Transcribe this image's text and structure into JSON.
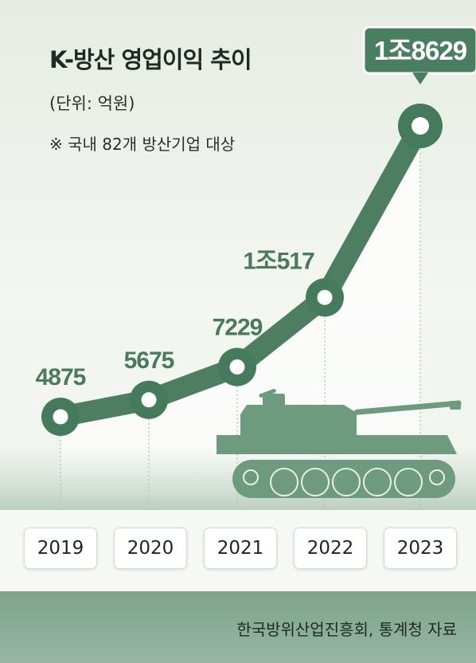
{
  "title": "K-방산 영업이익 추이",
  "unit_note": "(단위: 억원)",
  "scope_note": "※ 국내 82개 방산기업 대상",
  "source": "한국방위산업진흥회, 통계청 자료",
  "colors": {
    "line": "#4d7e62",
    "marker": "#457a5c",
    "callout": "#4a7e60",
    "label": "#4a7a5e",
    "tank": "#6e9a7e"
  },
  "chart_data": {
    "type": "line",
    "title": "K-방산 영업이익 추이",
    "ylabel": "(단위: 억원)",
    "categories": [
      "2019",
      "2020",
      "2021",
      "2022",
      "2023"
    ],
    "values": [
      4875,
      5675,
      7229,
      10517,
      18629
    ],
    "data_labels": [
      "4875",
      "5675",
      "7229",
      "1조517",
      "1조8629"
    ],
    "highlight_index": 4,
    "decoration": "tank-icon"
  }
}
